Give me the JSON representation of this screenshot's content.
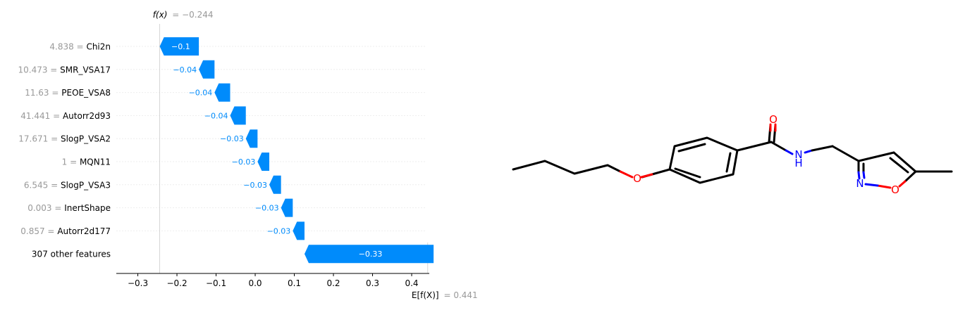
{
  "chart_data": {
    "type": "waterfall",
    "fx_label": "f(x)",
    "fx_value": "= −0.244",
    "fx": -0.244,
    "efx_label": "E[f(X)]",
    "efx_value": "= 0.441",
    "base": 0.441,
    "features": [
      {
        "value": "4.838",
        "name": "Chi2n",
        "shap": -0.1,
        "label": "−0.1"
      },
      {
        "value": "10.473",
        "name": "SMR_VSA17",
        "shap": -0.04,
        "label": "−0.04"
      },
      {
        "value": "11.63",
        "name": "PEOE_VSA8",
        "shap": -0.04,
        "label": "−0.04"
      },
      {
        "value": "41.441",
        "name": "Autorr2d93",
        "shap": -0.04,
        "label": "−0.04"
      },
      {
        "value": "17.671",
        "name": "SlogP_VSA2",
        "shap": -0.03,
        "label": "−0.03"
      },
      {
        "value": "1",
        "name": "MQN11",
        "shap": -0.03,
        "label": "−0.03"
      },
      {
        "value": "6.545",
        "name": "SlogP_VSA3",
        "shap": -0.03,
        "label": "−0.03"
      },
      {
        "value": "0.003",
        "name": "InertShape",
        "shap": -0.03,
        "label": "−0.03"
      },
      {
        "value": "0.857",
        "name": "Autorr2d177",
        "shap": -0.03,
        "label": "−0.03"
      },
      {
        "value": "",
        "name": "307 other features",
        "shap": -0.33,
        "label": "−0.33"
      }
    ],
    "xticks": [
      -0.3,
      -0.2,
      -0.1,
      0.0,
      0.1,
      0.2,
      0.3,
      0.4
    ],
    "xtick_labels": [
      "−0.3",
      "−0.2",
      "−0.1",
      "0.0",
      "0.1",
      "0.2",
      "0.3",
      "0.4"
    ],
    "xlim": [
      -0.355,
      0.445
    ],
    "bar_color": "#008bfb",
    "label_color": "#008bfb",
    "value_color": "#999999",
    "inline_label_color": "#ffffff"
  },
  "molecule": {
    "atom_O": "O",
    "atom_N": "N",
    "atom_H": "H",
    "carbon_color": "#000000",
    "oxygen_color": "#ff0000",
    "nitrogen_color": "#0000ff"
  }
}
